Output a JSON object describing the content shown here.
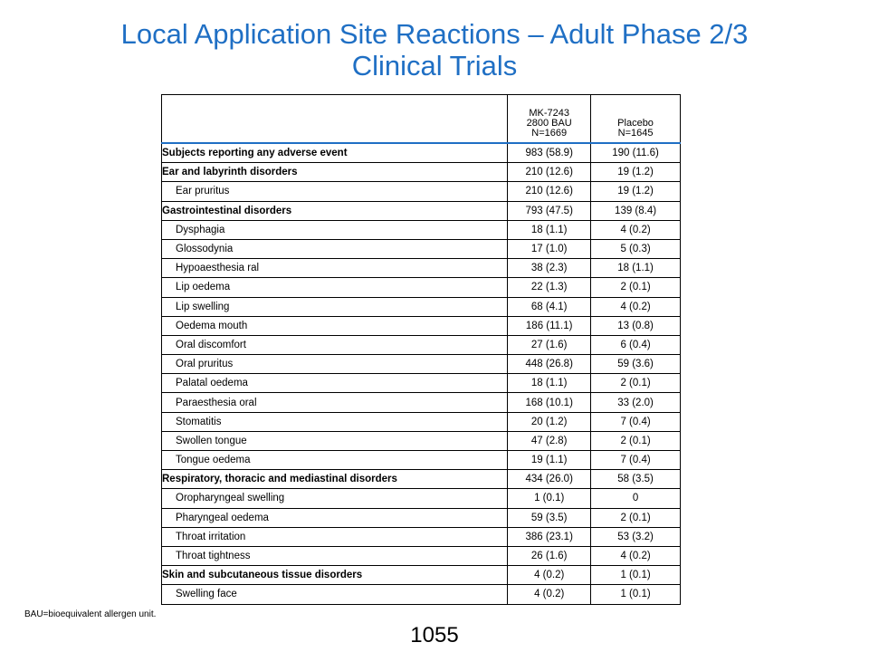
{
  "title": {
    "line1": "Local Application Site Reactions – Adult Phase 2/3",
    "line2": "Clinical Trials"
  },
  "table": {
    "header": {
      "col1": "",
      "col2_line1": "MK-7243",
      "col2_line2": "2800 BAU",
      "col2_line3": "N=1669",
      "col3_line1": "Placebo",
      "col3_line2": "N=1645"
    },
    "rows": [
      {
        "label": "Subjects reporting any adverse event",
        "mk": "983 (58.9)",
        "placebo": "190 (11.6)",
        "category": true
      },
      {
        "label": "Ear and labyrinth disorders",
        "mk": "210 (12.6)",
        "placebo": "19 (1.2)",
        "category": true
      },
      {
        "label": "Ear pruritus",
        "mk": "210 (12.6)",
        "placebo": "19 (1.2)",
        "category": false
      },
      {
        "label": "Gastrointestinal disorders",
        "mk": "793 (47.5)",
        "placebo": "139 (8.4)",
        "category": true
      },
      {
        "label": "Dysphagia",
        "mk": "18 (1.1)",
        "placebo": "4 (0.2)",
        "category": false
      },
      {
        "label": "Glossodynia",
        "mk": "17 (1.0)",
        "placebo": "5 (0.3)",
        "category": false
      },
      {
        "label": "Hypoaesthesia ral",
        "mk": "38 (2.3)",
        "placebo": "18 (1.1)",
        "category": false
      },
      {
        "label": "Lip oedema",
        "mk": "22 (1.3)",
        "placebo": "2 (0.1)",
        "category": false
      },
      {
        "label": "Lip swelling",
        "mk": "68 (4.1)",
        "placebo": "4 (0.2)",
        "category": false
      },
      {
        "label": "Oedema mouth",
        "mk": "186 (11.1)",
        "placebo": "13 (0.8)",
        "category": false
      },
      {
        "label": "Oral discomfort",
        "mk": "27 (1.6)",
        "placebo": "6 (0.4)",
        "category": false
      },
      {
        "label": "Oral pruritus",
        "mk": "448 (26.8)",
        "placebo": "59 (3.6)",
        "category": false
      },
      {
        "label": "Palatal oedema",
        "mk": "18 (1.1)",
        "placebo": "2 (0.1)",
        "category": false
      },
      {
        "label": "Paraesthesia oral",
        "mk": "168 (10.1)",
        "placebo": "33 (2.0)",
        "category": false
      },
      {
        "label": "Stomatitis",
        "mk": "20 (1.2)",
        "placebo": "7 (0.4)",
        "category": false
      },
      {
        "label": "Swollen tongue",
        "mk": "47 (2.8)",
        "placebo": "2 (0.1)",
        "category": false
      },
      {
        "label": "Tongue oedema",
        "mk": "19 (1.1)",
        "placebo": "7 (0.4)",
        "category": false
      },
      {
        "label": "Respiratory, thoracic and mediastinal disorders",
        "mk": "434 (26.0)",
        "placebo": "58 (3.5)",
        "category": true
      },
      {
        "label": "Oropharyngeal swelling",
        "mk": "1 (0.1)",
        "placebo": "0",
        "category": false
      },
      {
        "label": "Pharyngeal oedema",
        "mk": "59 (3.5)",
        "placebo": "2 (0.1)",
        "category": false
      },
      {
        "label": "Throat irritation",
        "mk": "386 (23.1)",
        "placebo": "53 (3.2)",
        "category": false
      },
      {
        "label": "Throat tightness",
        "mk": "26 (1.6)",
        "placebo": "4 (0.2)",
        "category": false
      },
      {
        "label": "Skin and subcutaneous tissue disorders",
        "mk": "4 (0.2)",
        "placebo": "1 (0.1)",
        "category": true
      },
      {
        "label": "Swelling face",
        "mk": "4 (0.2)",
        "placebo": "1 (0.1)",
        "category": false
      }
    ]
  },
  "footnote": "BAU=bioequivalent allergen unit.",
  "page_number": "1055",
  "colors": {
    "title": "#1f6fc4",
    "header_rule": "#1f6fc4"
  }
}
